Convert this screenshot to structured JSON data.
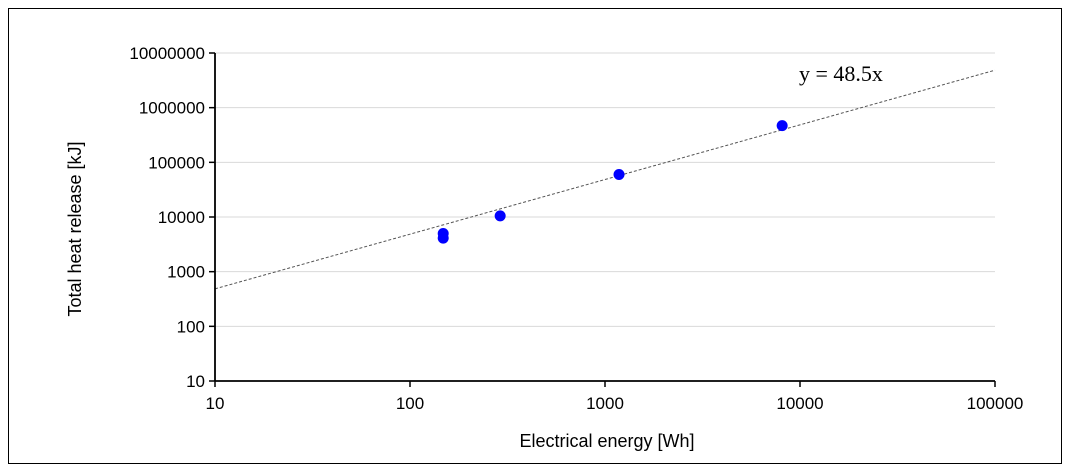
{
  "chart_data": {
    "type": "scatter",
    "title": "",
    "xlabel": "Electrical energy [Wh]",
    "ylabel": "Total heat release [kJ]",
    "x_scale": "log",
    "y_scale": "log",
    "xlim": [
      10,
      100000
    ],
    "ylim": [
      10,
      10000000
    ],
    "x_ticks": [
      "10",
      "100",
      "1000",
      "10000",
      "100000"
    ],
    "y_ticks": [
      "10",
      "100",
      "1000",
      "10000",
      "100000",
      "1000000",
      "10000000"
    ],
    "grid": "horizontal",
    "series": [
      {
        "x": [
          148,
          148,
          290,
          1180,
          8100
        ],
        "y": [
          5000,
          4100,
          10500,
          60000,
          470000
        ],
        "color": "#0000ff"
      }
    ],
    "trendline": {
      "slope": 48.5,
      "x_range": [
        10,
        100000
      ],
      "style": "dashed",
      "color": "#555555"
    },
    "annotation": "y = 48.5x"
  }
}
